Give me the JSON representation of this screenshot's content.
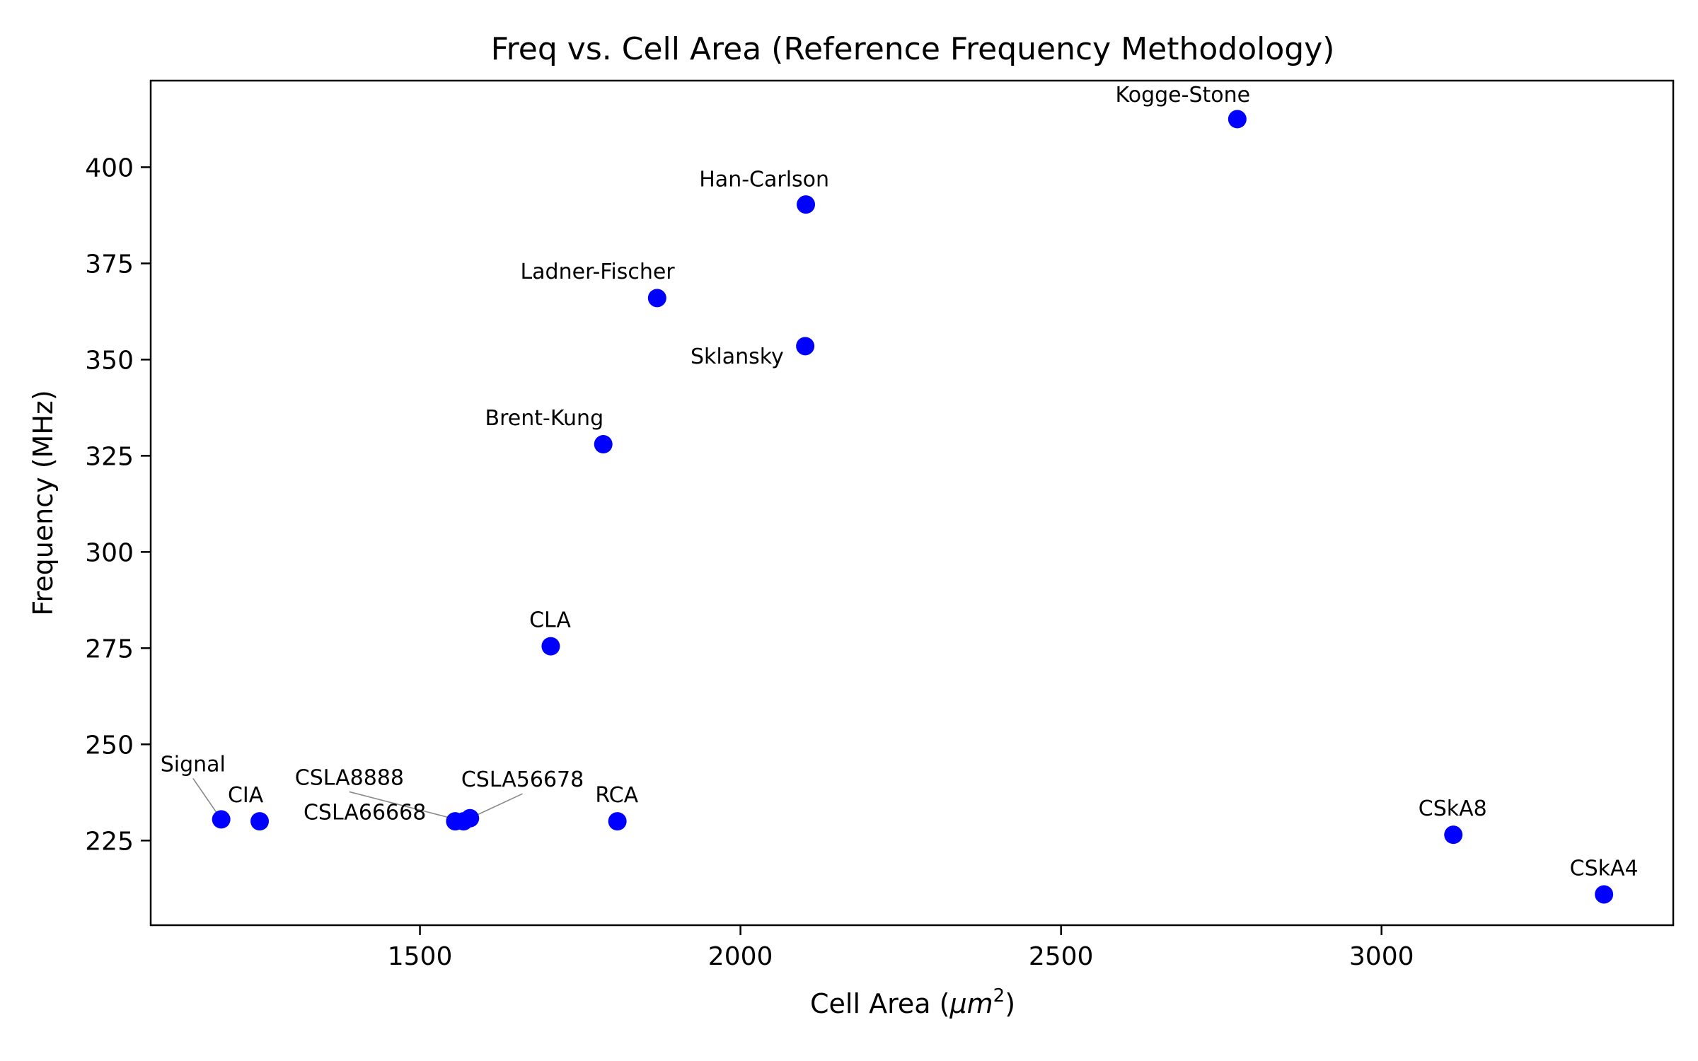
{
  "chart_data": {
    "type": "scatter",
    "title": "Freq vs. Cell Area (Reference Frequency Methodology)",
    "xlabel": "Cell Area (",
    "xlabel_unit": "μm",
    "xlabel_sup": "2",
    "xlabel_end": ")",
    "ylabel": "Frequency (MHz)",
    "xlim": [
      1080,
      3455
    ],
    "ylim": [
      203,
      422.5
    ],
    "xticks": [
      1500,
      2000,
      2500,
      3000
    ],
    "yticks": [
      225,
      250,
      275,
      300,
      325,
      350,
      375,
      400
    ],
    "point_color": "#0000ff",
    "points": [
      {
        "label": "Kogge-Stone",
        "x": 2775,
        "y": 412.5,
        "lx": 2690,
        "ly": 417,
        "anchor": "middle"
      },
      {
        "label": "Han-Carlson",
        "x": 2102,
        "y": 390.3,
        "lx": 2037,
        "ly": 395,
        "anchor": "middle"
      },
      {
        "label": "Ladner-Fischer",
        "x": 1870,
        "y": 366.0,
        "lx": 1777,
        "ly": 371,
        "anchor": "middle"
      },
      {
        "label": "Sklansky",
        "x": 2101,
        "y": 353.5,
        "lx": 1922,
        "ly": 349,
        "anchor": "start"
      },
      {
        "label": "Brent-Kung",
        "x": 1786,
        "y": 328.0,
        "lx": 1694,
        "ly": 333,
        "anchor": "middle"
      },
      {
        "label": "CLA",
        "x": 1704,
        "y": 275.5,
        "lx": 1703,
        "ly": 280.5,
        "anchor": "middle"
      },
      {
        "label": "Signal",
        "x": 1190,
        "y": 230.5,
        "lx": 1146,
        "ly": 243,
        "anchor": "middle",
        "leader": true
      },
      {
        "label": "CIA",
        "x": 1250,
        "y": 230.0,
        "lx": 1228,
        "ly": 235,
        "anchor": "middle"
      },
      {
        "label": "CSLA8888",
        "x": 1568,
        "y": 230.0,
        "lx": 1390,
        "ly": 239.5,
        "anchor": "middle",
        "leader": true
      },
      {
        "label": "CSLA66668",
        "x": 1555,
        "y": 230.0,
        "lx": 1414,
        "ly": 230.5,
        "anchor": "middle"
      },
      {
        "label": "CSLA56678",
        "x": 1578,
        "y": 230.8,
        "lx": 1660,
        "ly": 239,
        "anchor": "middle",
        "leader": true
      },
      {
        "label": "RCA",
        "x": 1808,
        "y": 230.0,
        "lx": 1807,
        "ly": 235,
        "anchor": "middle"
      },
      {
        "label": "CSkA8",
        "x": 3112,
        "y": 226.5,
        "lx": 3111,
        "ly": 231.5,
        "anchor": "middle"
      },
      {
        "label": "CSkA4",
        "x": 3347,
        "y": 211.0,
        "lx": 3347,
        "ly": 216,
        "anchor": "middle"
      }
    ]
  }
}
